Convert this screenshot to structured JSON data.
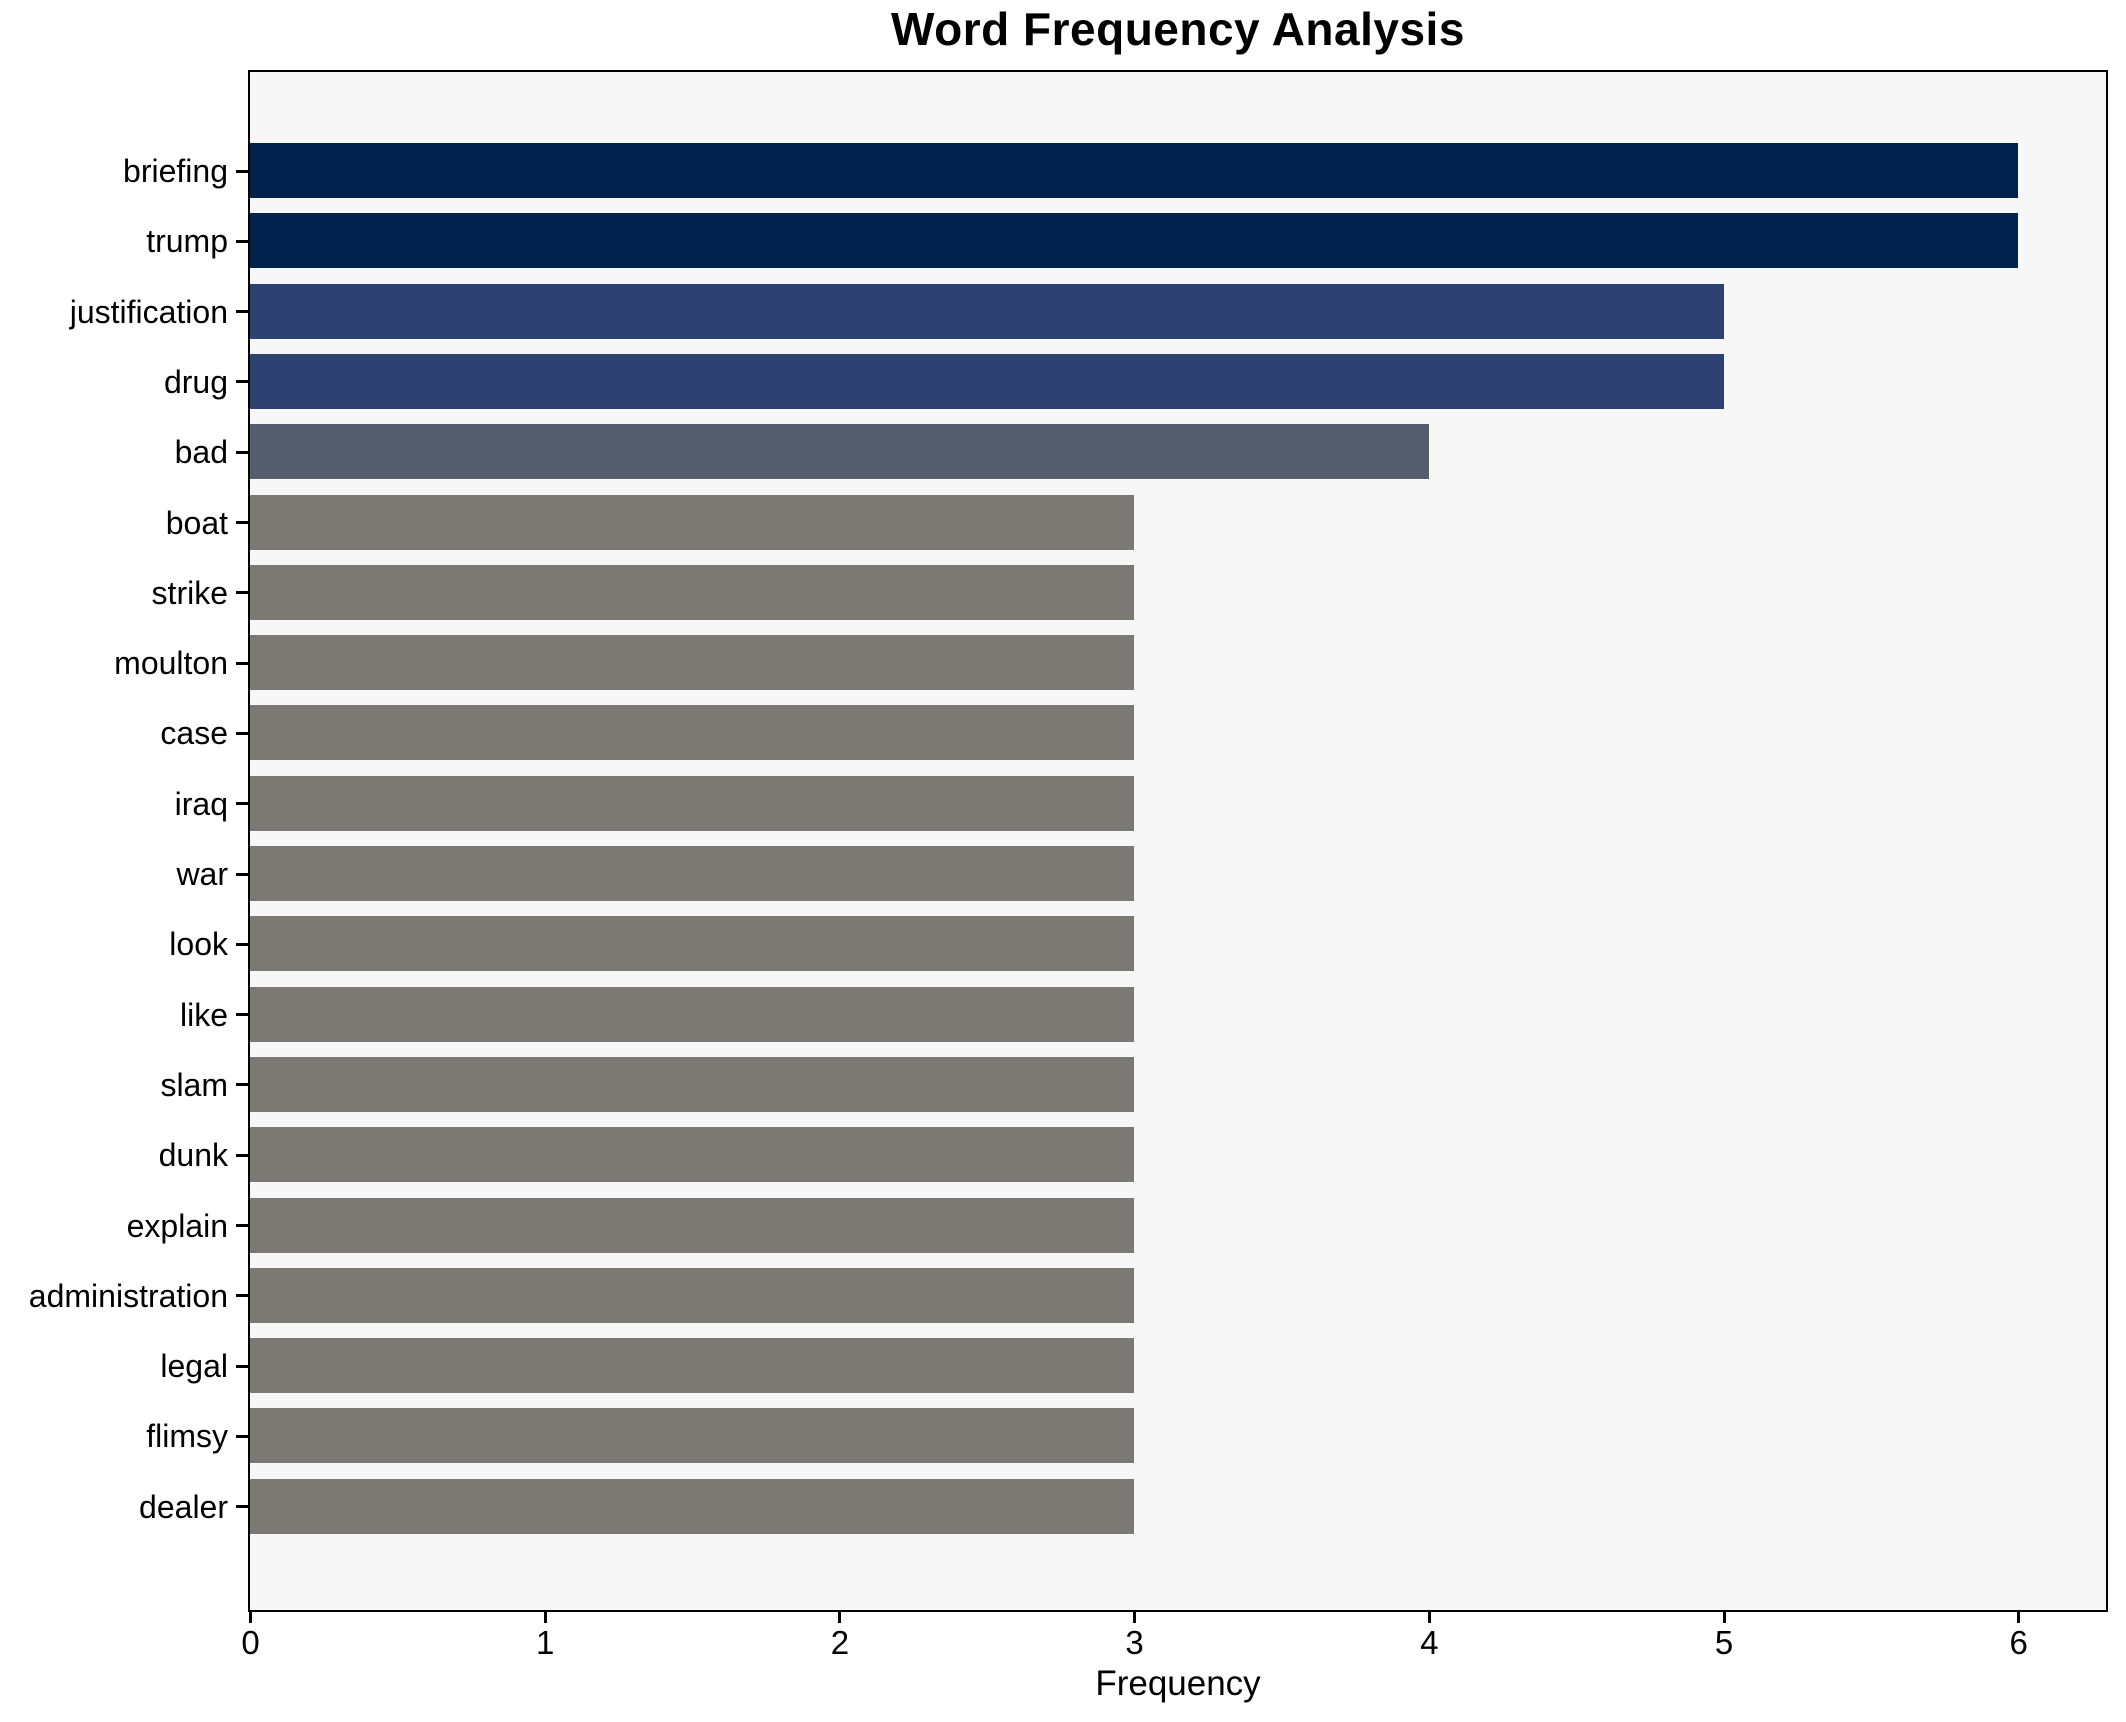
{
  "chart_data": {
    "type": "bar",
    "orientation": "horizontal",
    "title": "Word Frequency Analysis",
    "xlabel": "Frequency",
    "ylabel": "",
    "categories": [
      "briefing",
      "trump",
      "justification",
      "drug",
      "bad",
      "boat",
      "strike",
      "moulton",
      "case",
      "iraq",
      "war",
      "look",
      "like",
      "slam",
      "dunk",
      "explain",
      "administration",
      "legal",
      "flimsy",
      "dealer"
    ],
    "values": [
      6,
      6,
      5,
      5,
      4,
      3,
      3,
      3,
      3,
      3,
      3,
      3,
      3,
      3,
      3,
      3,
      3,
      3,
      3,
      3
    ],
    "xticks": [
      0,
      1,
      2,
      3,
      4,
      5,
      6
    ],
    "xlim": [
      0,
      6.31
    ],
    "grid": false,
    "legend": null,
    "colors": {
      "value_6": "#02224e",
      "value_5": "#2e4271",
      "value_4": "#565d6d",
      "value_3": "#7a7974",
      "plot_background": "#f7f7f7",
      "figure_background": "#ffffff",
      "spine": "#000000",
      "text": "#000000"
    }
  }
}
